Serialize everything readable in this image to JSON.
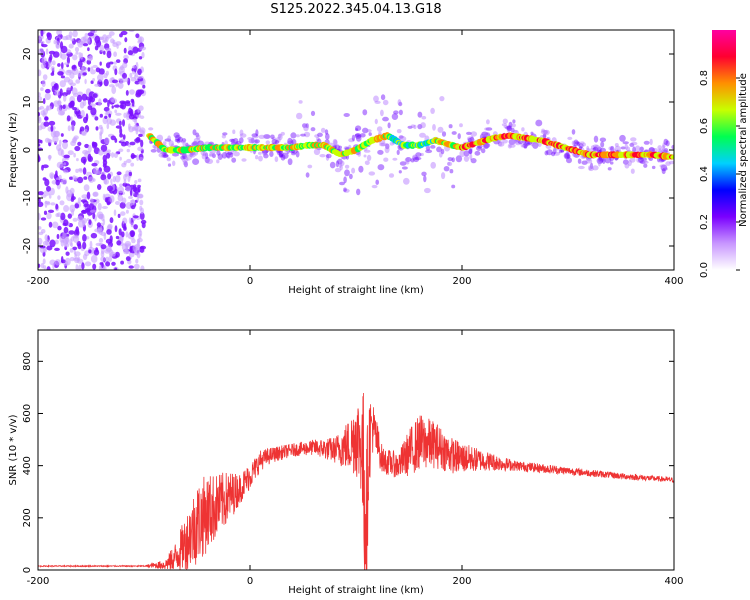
{
  "title": "S125.2022.345.04.13.G18",
  "chart_data": [
    {
      "type": "heatmap",
      "title": "S125.2022.345.04.13.G18",
      "xlabel": "Height of straight line (km)",
      "ylabel": "Frequency (Hz)",
      "xlim": [
        -200,
        400
      ],
      "ylim": [
        -25,
        25
      ],
      "xticks": [
        -200,
        0,
        200,
        400
      ],
      "yticks": [
        -20,
        -10,
        0,
        10,
        20
      ],
      "xtick_labels": [
        "-200",
        "0",
        "200",
        "400"
      ],
      "ytick_labels": [
        "-20",
        "-10",
        "0",
        "10",
        "20"
      ],
      "colorbar": {
        "label": "Normalized spectral amplitude",
        "range": [
          0,
          1
        ],
        "ticks": [
          0,
          0.2,
          0.4,
          0.6,
          0.8
        ],
        "tick_labels": [
          "0.0",
          "0.2",
          "0.4",
          "0.6",
          "0.8"
        ],
        "colors": [
          "#ffffff",
          "#c896ff",
          "#7a00ff",
          "#0000ff",
          "#00d0ff",
          "#00ff50",
          "#c8ff00",
          "#ff9000",
          "#ff0030",
          "#ff00a0"
        ]
      },
      "ridge": {
        "x": [
          -95,
          -80,
          -60,
          -40,
          -20,
          0,
          20,
          40,
          55,
          70,
          85,
          100,
          115,
          130,
          145,
          160,
          175,
          190,
          200,
          215,
          230,
          245,
          260,
          275,
          290,
          305,
          320,
          340,
          360,
          380,
          400
        ],
        "frequency": [
          3,
          0,
          0,
          0.5,
          0.5,
          0.5,
          0.5,
          0.5,
          1,
          1,
          -1,
          0,
          2,
          3,
          1,
          1,
          2,
          1,
          0.5,
          1.5,
          2.5,
          3,
          2.5,
          2,
          1,
          0,
          -1,
          -1,
          -1,
          -1,
          -1.5
        ]
      },
      "grid": false
    },
    {
      "type": "line",
      "xlabel": "Height of straight line (km)",
      "ylabel": "SNR (10 * v/v)",
      "xlim": [
        -200,
        400
      ],
      "ylim": [
        0,
        920
      ],
      "xticks": [
        -200,
        0,
        200,
        400
      ],
      "yticks": [
        0,
        200,
        400,
        600,
        800
      ],
      "xtick_labels": [
        "-200",
        "0",
        "200",
        "400"
      ],
      "ytick_labels": [
        "0",
        "200",
        "400",
        "600",
        "800"
      ],
      "series": [
        {
          "color": "#ee3333",
          "x": [
            -200,
            -150,
            -100,
            -80,
            -70,
            -60,
            -50,
            -40,
            -30,
            -20,
            -10,
            0,
            10,
            20,
            40,
            60,
            80,
            95,
            100,
            105,
            108,
            110,
            112,
            115,
            125,
            140,
            150,
            160,
            175,
            190,
            200,
            220,
            250,
            300,
            350,
            400
          ],
          "values": [
            15,
            15,
            15,
            20,
            50,
            110,
            180,
            220,
            250,
            280,
            310,
            360,
            420,
            440,
            460,
            470,
            460,
            480,
            520,
            480,
            300,
            200,
            480,
            560,
            420,
            400,
            450,
            490,
            480,
            440,
            430,
            420,
            400,
            380,
            360,
            345
          ],
          "noise": [
            2,
            2,
            2,
            20,
            60,
            110,
            160,
            150,
            120,
            100,
            60,
            50,
            40,
            30,
            25,
            30,
            50,
            110,
            160,
            190,
            420,
            300,
            200,
            110,
            50,
            50,
            90,
            110,
            90,
            70,
            60,
            40,
            20,
            15,
            12,
            10
          ]
        }
      ],
      "grid": false
    }
  ]
}
